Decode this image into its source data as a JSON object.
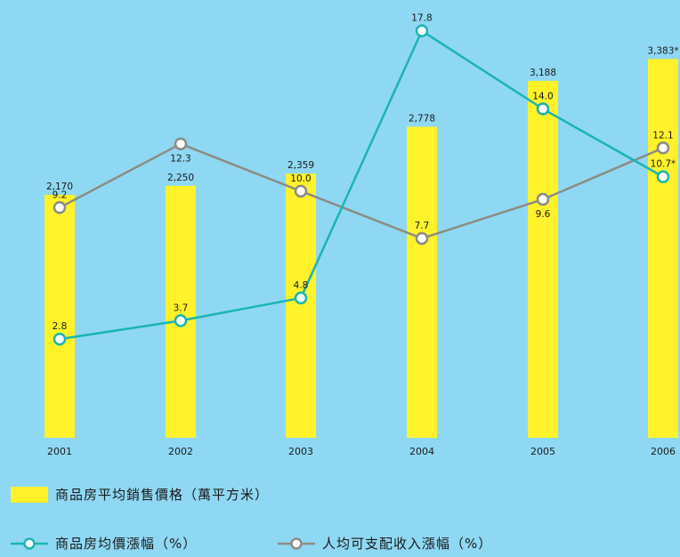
{
  "chart_data": {
    "type": "bar+line",
    "categories": [
      "2001",
      "2002",
      "2003",
      "2004",
      "2005",
      "2006"
    ],
    "bars": {
      "name": "商品房平均銷售價格（萬平方米）",
      "values": [
        2170,
        2250,
        2359,
        2778,
        3188,
        3383
      ],
      "labels": [
        "2,170",
        "2,250",
        "2,359",
        "2,778",
        "3,188",
        "3,383*"
      ],
      "color": "#fff22b",
      "ylim": [
        0,
        3600
      ]
    },
    "lines": [
      {
        "name": "商品房均價漲幅（%）",
        "values": [
          2.8,
          3.7,
          4.8,
          17.8,
          14.0,
          10.7
        ],
        "labels": [
          "2.8",
          "3.7",
          "4.8",
          "17.8",
          "14.0",
          "10.7*"
        ],
        "color": "#1ab5b0"
      },
      {
        "name": "人均可支配收入漲幅（%）",
        "values": [
          9.2,
          12.3,
          10.0,
          7.7,
          9.6,
          12.1
        ],
        "labels": [
          "9.2",
          "12.3",
          "10.0",
          "7.7",
          "9.6",
          "12.1"
        ],
        "color": "#8c8c84"
      }
    ],
    "line_ylim": [
      -2,
      19.3
    ],
    "grid": false,
    "legend_position": "bottom-left"
  }
}
